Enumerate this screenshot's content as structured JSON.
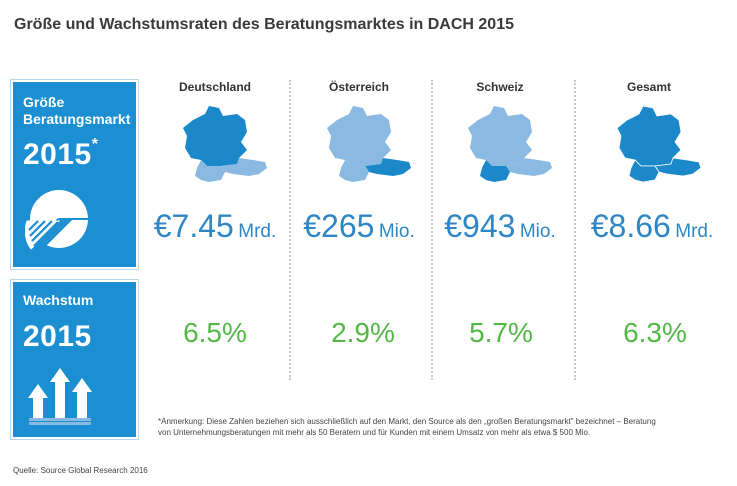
{
  "title": "Größe und Wachstumsraten des  Beratungsmarktes in DACH 2015",
  "size_panel": {
    "label_line1": "Größe",
    "label_line2": "Beratungsmarkt",
    "year": "2015",
    "marker": "*",
    "icon": "pie-chart-icon"
  },
  "growth_panel": {
    "label": "Wachstum",
    "year": "2015",
    "icon": "growth-arrows-icon"
  },
  "columns": [
    {
      "country": "Deutschland",
      "amount": "€7.45",
      "unit": "Mrd.",
      "growth": "6.5%",
      "highlight": "DE"
    },
    {
      "country": "Österreich",
      "amount": "€265",
      "unit": "Mio.",
      "growth": "2.9%",
      "highlight": "AT"
    },
    {
      "country": "Schweiz",
      "amount": "€943",
      "unit": "Mio.",
      "growth": "5.7%",
      "highlight": "CH"
    },
    {
      "country": "Gesamt",
      "amount": "€8.66",
      "unit": "Mrd.",
      "growth": "6.3%",
      "highlight": "ALL"
    }
  ],
  "note_line1": "*Anmerkung: Diese Zahlen beziehen sich ausschließlich auf den Markt, den Source als den „großen Beratungsmarkt\" bezeichnet – Beratung",
  "note_line2": "von Unternehmungsberatungen mit mehr als 50 Beratern und für Kunden mit einem Umsatz von mehr als etwa $ 500 Mio.",
  "source": "Quelle: Source Global Research 2016",
  "colors": {
    "panel": "#1b8fd2",
    "amount": "#2f86c4",
    "growth": "#54b847",
    "map_dark": "#1b88c9",
    "map_light": "#8ab9e2"
  }
}
